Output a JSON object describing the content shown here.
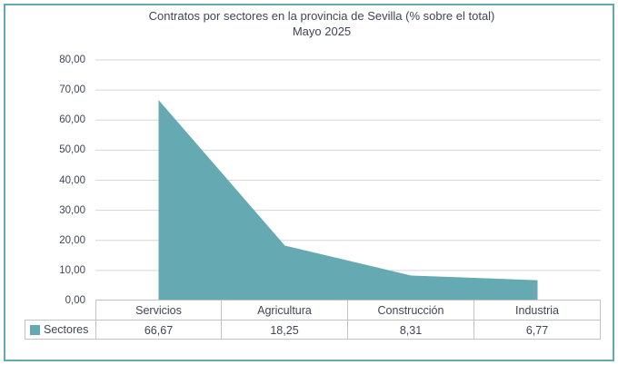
{
  "window": {
    "border_color": "#62A9B2"
  },
  "chart": {
    "title_line1": "Contratos por sectores en la provincia de Sevilla (% sobre el total)",
    "title_line2": "Mayo 2025",
    "legend_label": "Sectores"
  },
  "chart_data": {
    "type": "area",
    "title": "Contratos por sectores en la provincia de Sevilla (% sobre el total) — Mayo 2025",
    "categories": [
      "Servicios",
      "Agricultura",
      "Construcción",
      "Industria"
    ],
    "series": [
      {
        "name": "Sectores",
        "values": [
          66.67,
          18.25,
          8.31,
          6.77
        ]
      }
    ],
    "value_labels": [
      "66,67",
      "18,25",
      "8,31",
      "6,77"
    ],
    "xlabel": "",
    "ylabel": "",
    "ylim": [
      0,
      80
    ],
    "ytick_step": 10,
    "ytick_labels": [
      "0,00",
      "10,00",
      "20,00",
      "30,00",
      "40,00",
      "50,00",
      "60,00",
      "70,00",
      "80,00"
    ],
    "grid": true,
    "legend_position": "bottom-left-data-table",
    "colors": {
      "area_fill": "#65AAB2",
      "gridline": "#D6D6D6",
      "axis_table_border": "#C2C2C2",
      "text": "#3F4555"
    }
  }
}
